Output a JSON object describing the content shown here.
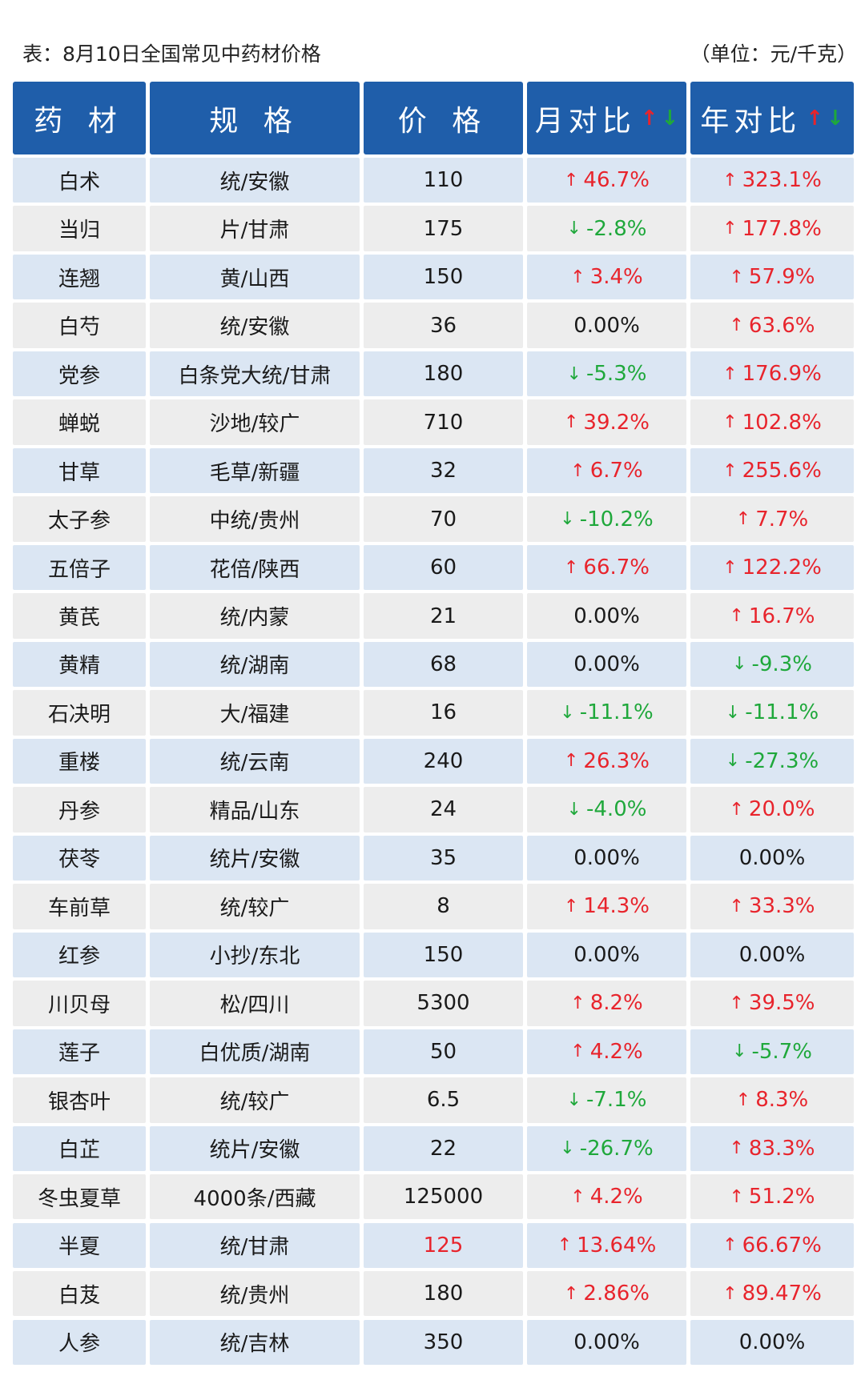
{
  "page": {
    "title": "表：8月10日全国常见中药材价格",
    "unit": "（单位：元/千克）"
  },
  "colors": {
    "header_bg": "#1f5eaa",
    "row_shade": "#dbe6f3",
    "row_plain": "#ededed",
    "up": "#e8242c",
    "down": "#1fa83b"
  },
  "table": {
    "headers": [
      "药 材",
      "规 格",
      "价 格",
      "月对比",
      "年对比"
    ],
    "header_icons": {
      "up": "↑",
      "down": "↓"
    },
    "rows": [
      {
        "name": "白术",
        "spec": "统/安徽",
        "price": "110",
        "month": "46.7%",
        "month_dir": "up",
        "year": "323.1%",
        "year_dir": "up"
      },
      {
        "name": "当归",
        "spec": "片/甘肃",
        "price": "175",
        "month": "-2.8%",
        "month_dir": "down",
        "year": "177.8%",
        "year_dir": "up"
      },
      {
        "name": "连翘",
        "spec": "黄/山西",
        "price": "150",
        "month": "3.4%",
        "month_dir": "up",
        "year": "57.9%",
        "year_dir": "up"
      },
      {
        "name": "白芍",
        "spec": "统/安徽",
        "price": "36",
        "month": "0.00%",
        "month_dir": "flat",
        "year": "63.6%",
        "year_dir": "up"
      },
      {
        "name": "党参",
        "spec": "白条党大统/甘肃",
        "price": "180",
        "month": "-5.3%",
        "month_dir": "down",
        "year": "176.9%",
        "year_dir": "up"
      },
      {
        "name": "蝉蜕",
        "spec": "沙地/较广",
        "price": "710",
        "month": "39.2%",
        "month_dir": "up",
        "year": "102.8%",
        "year_dir": "up"
      },
      {
        "name": "甘草",
        "spec": "毛草/新疆",
        "price": "32",
        "month": "6.7%",
        "month_dir": "up",
        "year": "255.6%",
        "year_dir": "up"
      },
      {
        "name": "太子参",
        "spec": "中统/贵州",
        "price": "70",
        "month": "-10.2%",
        "month_dir": "down",
        "year": "7.7%",
        "year_dir": "up"
      },
      {
        "name": "五倍子",
        "spec": "花倍/陕西",
        "price": "60",
        "month": "66.7%",
        "month_dir": "up",
        "year": "122.2%",
        "year_dir": "up"
      },
      {
        "name": "黄芪",
        "spec": "统/内蒙",
        "price": "21",
        "month": "0.00%",
        "month_dir": "flat",
        "year": "16.7%",
        "year_dir": "up"
      },
      {
        "name": "黄精",
        "spec": "统/湖南",
        "price": "68",
        "month": "0.00%",
        "month_dir": "flat",
        "year": "-9.3%",
        "year_dir": "down"
      },
      {
        "name": "石决明",
        "spec": "大/福建",
        "price": "16",
        "month": "-11.1%",
        "month_dir": "down",
        "year": "-11.1%",
        "year_dir": "down"
      },
      {
        "name": "重楼",
        "spec": "统/云南",
        "price": "240",
        "month": "26.3%",
        "month_dir": "up",
        "year": "-27.3%",
        "year_dir": "down"
      },
      {
        "name": "丹参",
        "spec": "精品/山东",
        "price": "24",
        "month": "-4.0%",
        "month_dir": "down",
        "year": "20.0%",
        "year_dir": "up"
      },
      {
        "name": "茯苓",
        "spec": "统片/安徽",
        "price": "35",
        "month": "0.00%",
        "month_dir": "flat",
        "year": "0.00%",
        "year_dir": "flat"
      },
      {
        "name": "车前草",
        "spec": "统/较广",
        "price": "8",
        "month": "14.3%",
        "month_dir": "up",
        "year": "33.3%",
        "year_dir": "up"
      },
      {
        "name": "红参",
        "spec": "小抄/东北",
        "price": "150",
        "month": "0.00%",
        "month_dir": "flat",
        "year": "0.00%",
        "year_dir": "flat"
      },
      {
        "name": "川贝母",
        "spec": "松/四川",
        "price": "5300",
        "month": "8.2%",
        "month_dir": "up",
        "year": "39.5%",
        "year_dir": "up"
      },
      {
        "name": "莲子",
        "spec": "白优质/湖南",
        "price": "50",
        "month": "4.2%",
        "month_dir": "up",
        "year": "-5.7%",
        "year_dir": "down"
      },
      {
        "name": "银杏叶",
        "spec": "统/较广",
        "price": "6.5",
        "month": "-7.1%",
        "month_dir": "down",
        "year": "8.3%",
        "year_dir": "up"
      },
      {
        "name": "白芷",
        "spec": "统片/安徽",
        "price": "22",
        "month": "-26.7%",
        "month_dir": "down",
        "year": "83.3%",
        "year_dir": "up"
      },
      {
        "name": "冬虫夏草",
        "spec": "4000条/西藏",
        "price": "125000",
        "month": "4.2%",
        "month_dir": "up",
        "year": "51.2%",
        "year_dir": "up"
      },
      {
        "name": "半夏",
        "spec": "统/甘肃",
        "price": "125",
        "price_color": "red",
        "month": "13.64%",
        "month_dir": "up",
        "year": "66.67%",
        "year_dir": "up"
      },
      {
        "name": "白芨",
        "spec": "统/贵州",
        "price": "180",
        "month": "2.86%",
        "month_dir": "up",
        "year": "89.47%",
        "year_dir": "up"
      },
      {
        "name": "人参",
        "spec": "统/吉林",
        "price": "350",
        "month": "0.00%",
        "month_dir": "flat",
        "year": "0.00%",
        "year_dir": "flat"
      }
    ]
  }
}
